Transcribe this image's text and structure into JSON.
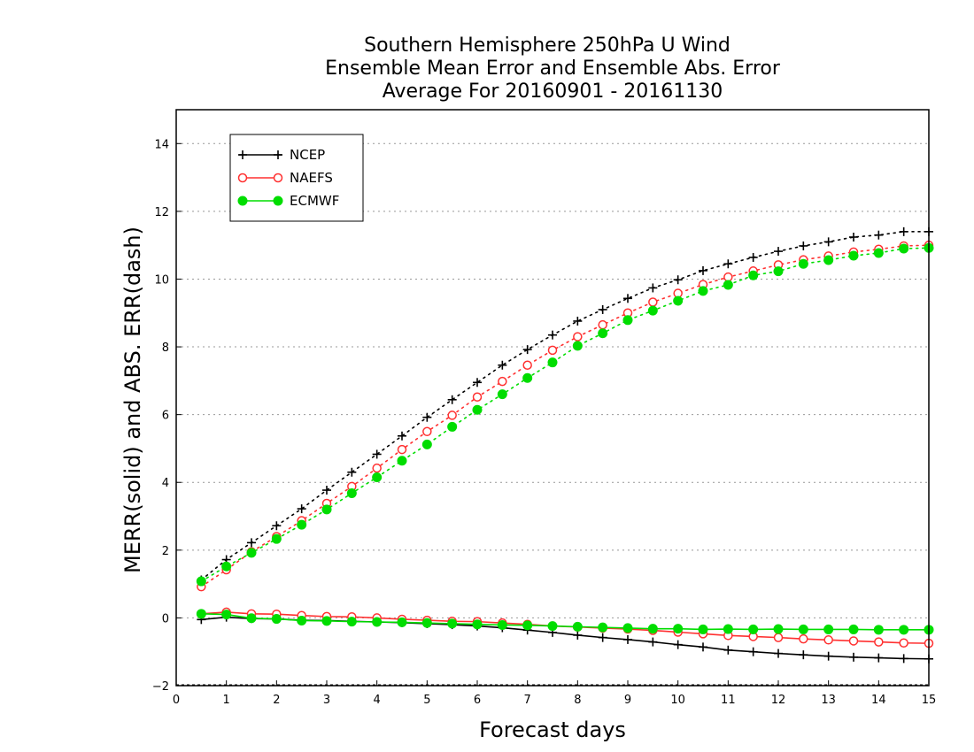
{
  "chart_data": {
    "type": "line",
    "title": [
      "Southern Hemisphere 250hPa U Wind",
      "Ensemble Mean Error and Ensemble Abs. Error",
      "Average For 20160901 - 20161130"
    ],
    "xlabel": "Forecast days",
    "ylabel": "MERR(solid) and ABS. ERR(dash)",
    "xlim": [
      0,
      15
    ],
    "ylim": [
      -2,
      15
    ],
    "xticks": [
      0,
      1,
      2,
      3,
      4,
      5,
      6,
      7,
      8,
      9,
      10,
      11,
      12,
      13,
      14,
      15
    ],
    "xtick_labels": [
      "0",
      "1",
      "2",
      "3",
      "4",
      "5",
      "6",
      "7",
      "8",
      "9",
      "10",
      "11",
      "12",
      "13",
      "14",
      "15"
    ],
    "yticks": [
      -2,
      0,
      2,
      4,
      6,
      8,
      10,
      12,
      14
    ],
    "ytick_labels": [
      "−2",
      "0",
      "2",
      "4",
      "6",
      "8",
      "10",
      "12",
      "14"
    ],
    "grid": "horizontal dotted",
    "legend_position": "top-left",
    "x": [
      0.5,
      1,
      1.5,
      2,
      2.5,
      3,
      3.5,
      4,
      4.5,
      5,
      5.5,
      6,
      6.5,
      7,
      7.5,
      8,
      8.5,
      9,
      9.5,
      10,
      10.5,
      11,
      11.5,
      12,
      12.5,
      13,
      13.5,
      14,
      14.5,
      15
    ],
    "series": [
      {
        "name": "NCEP",
        "color": "#000000",
        "marker": "plus",
        "merr": [
          -0.05,
          0.02,
          -0.02,
          -0.03,
          -0.07,
          -0.08,
          -0.1,
          -0.12,
          -0.14,
          -0.17,
          -0.2,
          -0.24,
          -0.29,
          -0.36,
          -0.43,
          -0.51,
          -0.58,
          -0.64,
          -0.71,
          -0.79,
          -0.86,
          -0.95,
          -1.0,
          -1.05,
          -1.09,
          -1.13,
          -1.16,
          -1.18,
          -1.2,
          -1.21
        ],
        "abs_err": [
          1.12,
          1.72,
          2.22,
          2.72,
          3.22,
          3.77,
          4.3,
          4.83,
          5.37,
          5.92,
          6.44,
          6.95,
          7.46,
          7.92,
          8.35,
          8.76,
          9.1,
          9.43,
          9.74,
          9.98,
          10.25,
          10.45,
          10.64,
          10.82,
          10.98,
          11.1,
          11.24,
          11.3,
          11.4,
          11.4
        ]
      },
      {
        "name": "NAEFS",
        "color": "#ff3030",
        "marker": "open-circle",
        "merr": [
          0.12,
          0.17,
          0.12,
          0.11,
          0.07,
          0.04,
          0.03,
          0.0,
          -0.04,
          -0.07,
          -0.1,
          -0.11,
          -0.15,
          -0.19,
          -0.24,
          -0.27,
          -0.3,
          -0.33,
          -0.37,
          -0.42,
          -0.47,
          -0.52,
          -0.55,
          -0.58,
          -0.62,
          -0.65,
          -0.68,
          -0.71,
          -0.74,
          -0.75
        ],
        "abs_err": [
          0.92,
          1.42,
          1.95,
          2.4,
          2.87,
          3.38,
          3.88,
          4.42,
          4.97,
          5.5,
          5.98,
          6.52,
          6.98,
          7.46,
          7.9,
          8.3,
          8.65,
          9.0,
          9.32,
          9.58,
          9.84,
          10.06,
          10.24,
          10.42,
          10.57,
          10.68,
          10.8,
          10.88,
          10.98,
          11.0
        ]
      },
      {
        "name": "ECMWF",
        "color": "#00dd00",
        "marker": "filled-circle",
        "merr": [
          0.12,
          0.1,
          -0.01,
          -0.03,
          -0.08,
          -0.09,
          -0.11,
          -0.12,
          -0.13,
          -0.15,
          -0.17,
          -0.19,
          -0.21,
          -0.22,
          -0.24,
          -0.26,
          -0.28,
          -0.3,
          -0.32,
          -0.32,
          -0.34,
          -0.33,
          -0.34,
          -0.33,
          -0.34,
          -0.34,
          -0.34,
          -0.35,
          -0.35,
          -0.35
        ],
        "abs_err": [
          1.08,
          1.52,
          1.92,
          2.33,
          2.75,
          3.2,
          3.68,
          4.15,
          4.64,
          5.12,
          5.64,
          6.14,
          6.6,
          7.08,
          7.54,
          8.03,
          8.4,
          8.79,
          9.07,
          9.36,
          9.65,
          9.83,
          10.11,
          10.23,
          10.45,
          10.56,
          10.69,
          10.77,
          10.9,
          10.92
        ]
      }
    ]
  }
}
